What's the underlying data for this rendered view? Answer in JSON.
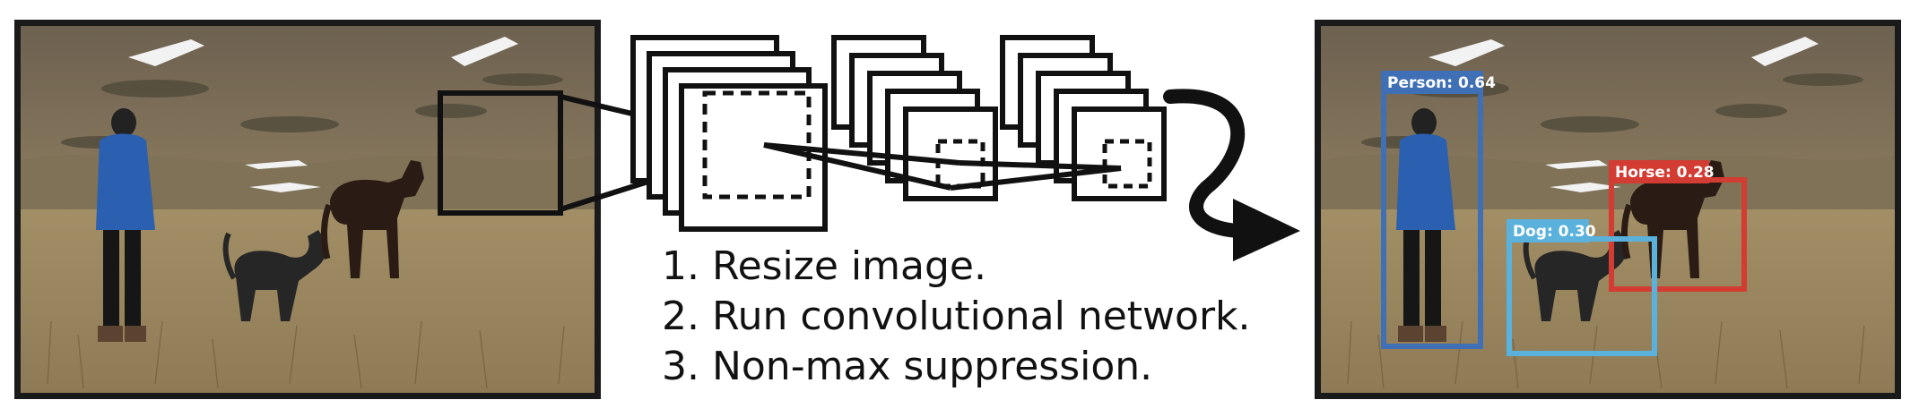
{
  "figure": {
    "input_image": {
      "subject": "person walking a dog with a horse in a grassy field"
    },
    "pipeline_icon": "convolutional-network-stack-icon",
    "steps": [
      "1. Resize image.",
      "2. Run convolutional network.",
      "3. Non-max suppression."
    ],
    "detections": [
      {
        "label": "Person: 0.64",
        "color": "#3f6fb4"
      },
      {
        "label": "Horse: 0.28",
        "color": "#d23c32"
      },
      {
        "label": "Dog: 0.30",
        "color": "#5ab1dc"
      }
    ],
    "colors": {
      "frame": "#1a1a1a",
      "ink": "#111111"
    }
  }
}
